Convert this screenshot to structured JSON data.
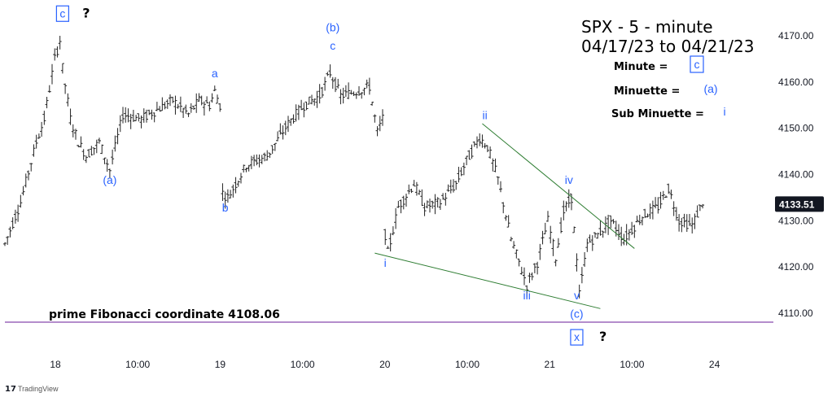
{
  "chart_data": {
    "type": "ohlc",
    "title": "SPX - 5 - minute",
    "subtitle": "04/17/23 to 04/21/23",
    "legend": [
      {
        "label": "Minute  =",
        "symbol": "c",
        "boxed": true
      },
      {
        "label": "Minuette  =",
        "symbol": "(a)",
        "boxed": false
      },
      {
        "label": "Sub Minuette  =",
        "symbol": "i",
        "boxed": false
      }
    ],
    "y_ticks": [
      4110,
      4120,
      4130,
      4140,
      4150,
      4160,
      4170
    ],
    "y_tick_labels": [
      "4110.00",
      "4120.00",
      "4130.00",
      "4140.00",
      "4150.00",
      "4160.00",
      "4170.00"
    ],
    "ylim": [
      4103,
      4178
    ],
    "x_ticks": [
      "18",
      "10:00",
      "19",
      "10:00",
      "20",
      "10:00",
      "21",
      "10:00",
      "24"
    ],
    "last_price": 4133.51,
    "last_price_label": "4133.51",
    "fib_line": {
      "value": 4108.06,
      "label": "prime Fibonacci coordinate 4108.06"
    },
    "path": [
      {
        "t": 0,
        "p": 4125
      },
      {
        "t": 6,
        "p": 4134
      },
      {
        "t": 12,
        "p": 4147
      },
      {
        "t": 15,
        "p": 4152
      },
      {
        "t": 19,
        "p": 4165
      },
      {
        "t": 21,
        "p": 4169
      },
      {
        "t": 22,
        "p": 4163
      },
      {
        "t": 25,
        "p": 4152
      },
      {
        "t": 28,
        "p": 4147
      },
      {
        "t": 31,
        "p": 4144
      },
      {
        "t": 36,
        "p": 4147
      },
      {
        "t": 40,
        "p": 4141
      },
      {
        "t": 45,
        "p": 4153
      },
      {
        "t": 52,
        "p": 4152
      },
      {
        "t": 58,
        "p": 4154
      },
      {
        "t": 64,
        "p": 4156
      },
      {
        "t": 70,
        "p": 4153
      },
      {
        "t": 74,
        "p": 4156
      },
      {
        "t": 78,
        "p": 4155
      },
      {
        "t": 80,
        "p": 4158
      },
      {
        "t": 82,
        "p": 4155
      },
      {
        "t": 83,
        "p": 4136
      },
      {
        "t": 85,
        "p": 4135
      },
      {
        "t": 92,
        "p": 4142
      },
      {
        "t": 100,
        "p": 4144
      },
      {
        "t": 108,
        "p": 4151
      },
      {
        "t": 114,
        "p": 4155
      },
      {
        "t": 120,
        "p": 4157
      },
      {
        "t": 124,
        "p": 4162
      },
      {
        "t": 128,
        "p": 4157
      },
      {
        "t": 134,
        "p": 4158
      },
      {
        "t": 139,
        "p": 4159
      },
      {
        "t": 142,
        "p": 4149
      },
      {
        "t": 144,
        "p": 4152
      },
      {
        "t": 145,
        "p": 4127
      },
      {
        "t": 146,
        "p": 4123
      },
      {
        "t": 150,
        "p": 4133
      },
      {
        "t": 156,
        "p": 4138
      },
      {
        "t": 160,
        "p": 4133
      },
      {
        "t": 166,
        "p": 4134
      },
      {
        "t": 172,
        "p": 4138
      },
      {
        "t": 176,
        "p": 4143
      },
      {
        "t": 181,
        "p": 4148
      },
      {
        "t": 184,
        "p": 4146
      },
      {
        "t": 188,
        "p": 4139
      },
      {
        "t": 193,
        "p": 4126
      },
      {
        "t": 199,
        "p": 4116
      },
      {
        "t": 203,
        "p": 4121
      },
      {
        "t": 207,
        "p": 4130
      },
      {
        "t": 210,
        "p": 4122
      },
      {
        "t": 213,
        "p": 4132
      },
      {
        "t": 216,
        "p": 4135
      },
      {
        "t": 219,
        "p": 4114
      },
      {
        "t": 222,
        "p": 4125
      },
      {
        "t": 226,
        "p": 4127
      },
      {
        "t": 231,
        "p": 4130
      },
      {
        "t": 236,
        "p": 4126
      },
      {
        "t": 243,
        "p": 4131
      },
      {
        "t": 249,
        "p": 4133
      },
      {
        "t": 253,
        "p": 4137
      },
      {
        "t": 257,
        "p": 4130
      },
      {
        "t": 262,
        "p": 4129
      },
      {
        "t": 266,
        "p": 4134
      }
    ],
    "trendlines": [
      {
        "from": {
          "t": 141,
          "p": 4123
        },
        "to": {
          "t": 227,
          "p": 4111
        }
      },
      {
        "from": {
          "t": 182,
          "p": 4151
        },
        "to": {
          "t": 240,
          "p": 4124
        }
      }
    ],
    "wave_labels": [
      {
        "text": "c",
        "t": 22,
        "p": 4174,
        "boxed": true
      },
      {
        "text": "?",
        "t": 31,
        "p": 4174,
        "boxed": false,
        "dark": true
      },
      {
        "text": "(a)",
        "t": 40,
        "p": 4138,
        "boxed": false
      },
      {
        "text": "a",
        "t": 80,
        "p": 4161,
        "boxed": false
      },
      {
        "text": "b",
        "t": 84,
        "p": 4132,
        "boxed": false
      },
      {
        "text": "(b)",
        "t": 125,
        "p": 4171,
        "boxed": false
      },
      {
        "text": "c",
        "t": 125,
        "p": 4167,
        "boxed": false
      },
      {
        "text": "i",
        "t": 145,
        "p": 4120,
        "boxed": false
      },
      {
        "text": "ii",
        "t": 183,
        "p": 4152,
        "boxed": false
      },
      {
        "text": "iii",
        "t": 199,
        "p": 4113,
        "boxed": false
      },
      {
        "text": "iv",
        "t": 215,
        "p": 4138,
        "boxed": false
      },
      {
        "text": "v",
        "t": 218,
        "p": 4113,
        "boxed": false
      },
      {
        "text": "(c)",
        "t": 218,
        "p": 4109,
        "boxed": false
      },
      {
        "text": "x",
        "t": 218,
        "p": 4104,
        "boxed": true
      },
      {
        "text": "?",
        "t": 228,
        "p": 4104,
        "boxed": false,
        "dark": true
      }
    ]
  },
  "footer": {
    "logo_text": "TradingView"
  }
}
